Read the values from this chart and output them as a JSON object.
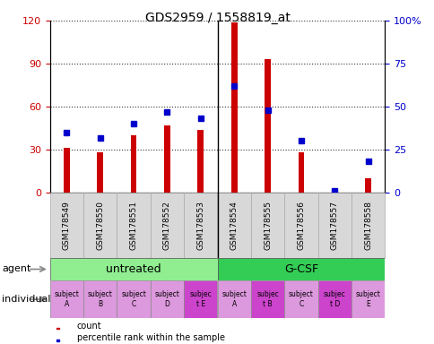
{
  "title": "GDS2959 / 1558819_at",
  "samples": [
    "GSM178549",
    "GSM178550",
    "GSM178551",
    "GSM178552",
    "GSM178553",
    "GSM178554",
    "GSM178555",
    "GSM178556",
    "GSM178557",
    "GSM178558"
  ],
  "counts": [
    31,
    28,
    40,
    47,
    44,
    119,
    93,
    28,
    2,
    10
  ],
  "percentile_ranks": [
    35,
    32,
    40,
    47,
    43,
    62,
    48,
    30,
    1,
    18
  ],
  "ylim_left": [
    0,
    120
  ],
  "ylim_right": [
    0,
    100
  ],
  "yticks_left": [
    0,
    30,
    60,
    90,
    120
  ],
  "yticks_right": [
    0,
    25,
    50,
    75,
    100
  ],
  "ytick_labels_left": [
    "0",
    "30",
    "60",
    "90",
    "120"
  ],
  "ytick_labels_right": [
    "0",
    "25",
    "50",
    "75",
    "100%"
  ],
  "agent_groups": [
    {
      "label": "untreated",
      "start": 0,
      "end": 5,
      "color": "#90ee90"
    },
    {
      "label": "G-CSF",
      "start": 5,
      "end": 10,
      "color": "#33cc55"
    }
  ],
  "individual_labels": [
    {
      "line1": "subject",
      "line2": "A",
      "col": 0,
      "highlight": false
    },
    {
      "line1": "subject",
      "line2": "B",
      "col": 1,
      "highlight": false
    },
    {
      "line1": "subject",
      "line2": "C",
      "col": 2,
      "highlight": false
    },
    {
      "line1": "subject",
      "line2": "D",
      "col": 3,
      "highlight": false
    },
    {
      "line1": "subjec",
      "line2": "t E",
      "col": 4,
      "highlight": true
    },
    {
      "line1": "subject",
      "line2": "A",
      "col": 5,
      "highlight": false
    },
    {
      "line1": "subjec",
      "line2": "t B",
      "col": 6,
      "highlight": true
    },
    {
      "line1": "subject",
      "line2": "C",
      "col": 7,
      "highlight": false
    },
    {
      "line1": "subjec",
      "line2": "t D",
      "col": 8,
      "highlight": true
    },
    {
      "line1": "subject",
      "line2": "E",
      "col": 9,
      "highlight": false
    }
  ],
  "bar_color": "#cc0000",
  "marker_color": "#0000cc",
  "bg_color": "#d8d8d8",
  "tick_color_left": "#cc0000",
  "tick_color_right": "#0000cc",
  "individual_normal_color": "#dd99dd",
  "individual_highlight_color": "#cc44cc",
  "label_agent": "agent",
  "label_individual": "individual"
}
